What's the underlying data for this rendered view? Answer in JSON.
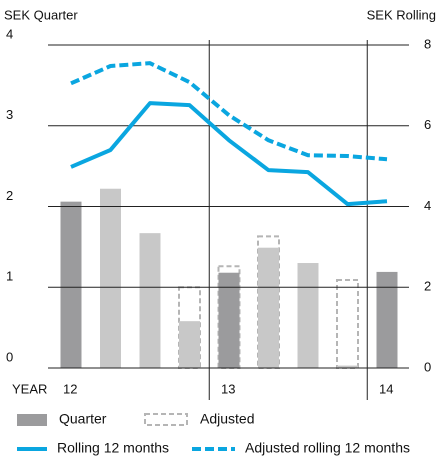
{
  "chart_data": {
    "type": "bar",
    "y_label": "SEK Quarter",
    "y2_label": "SEK Rolling",
    "x_label": "YEAR",
    "categories": [
      "12",
      null,
      null,
      null,
      "13",
      null,
      null,
      null,
      "14"
    ],
    "ylim": [
      0,
      4
    ],
    "yticks": [
      0,
      1,
      2,
      3,
      4
    ],
    "y2lim": [
      0,
      8
    ],
    "y2ticks": [
      0,
      2,
      4,
      6,
      8
    ],
    "grid": true,
    "series": [
      {
        "name": "Quarter",
        "type": "bar",
        "color": "#9b9b9d",
        "colors": [
          "#9b9b9d",
          "#c8c8c8",
          "#c8c8c8",
          "#c8c8c8",
          "#9b9b9d",
          "#c8c8c8",
          "#c8c8c8",
          "#c8c8c8",
          "#9b9b9d"
        ],
        "values": [
          2.06,
          2.22,
          1.67,
          0.58,
          1.18,
          1.49,
          1.3,
          0.03,
          1.19
        ]
      },
      {
        "name": "Adjusted",
        "type": "bar-outline",
        "color": "#b5b5b5",
        "values": [
          null,
          null,
          null,
          1.0,
          1.26,
          1.63,
          null,
          1.09,
          null
        ]
      },
      {
        "name": "Rolling 12 months",
        "type": "line",
        "axis": "y2",
        "color": "#0aa6e0",
        "values": [
          4.98,
          5.4,
          6.56,
          6.51,
          5.64,
          4.9,
          4.85,
          4.06,
          4.13
        ]
      },
      {
        "name": "Adjusted rolling 12 months",
        "type": "line-dashed",
        "axis": "y2",
        "color": "#0aa6e0",
        "values": [
          7.05,
          7.48,
          7.55,
          7.08,
          6.26,
          5.64,
          5.27,
          5.25,
          5.17
        ]
      }
    ]
  }
}
